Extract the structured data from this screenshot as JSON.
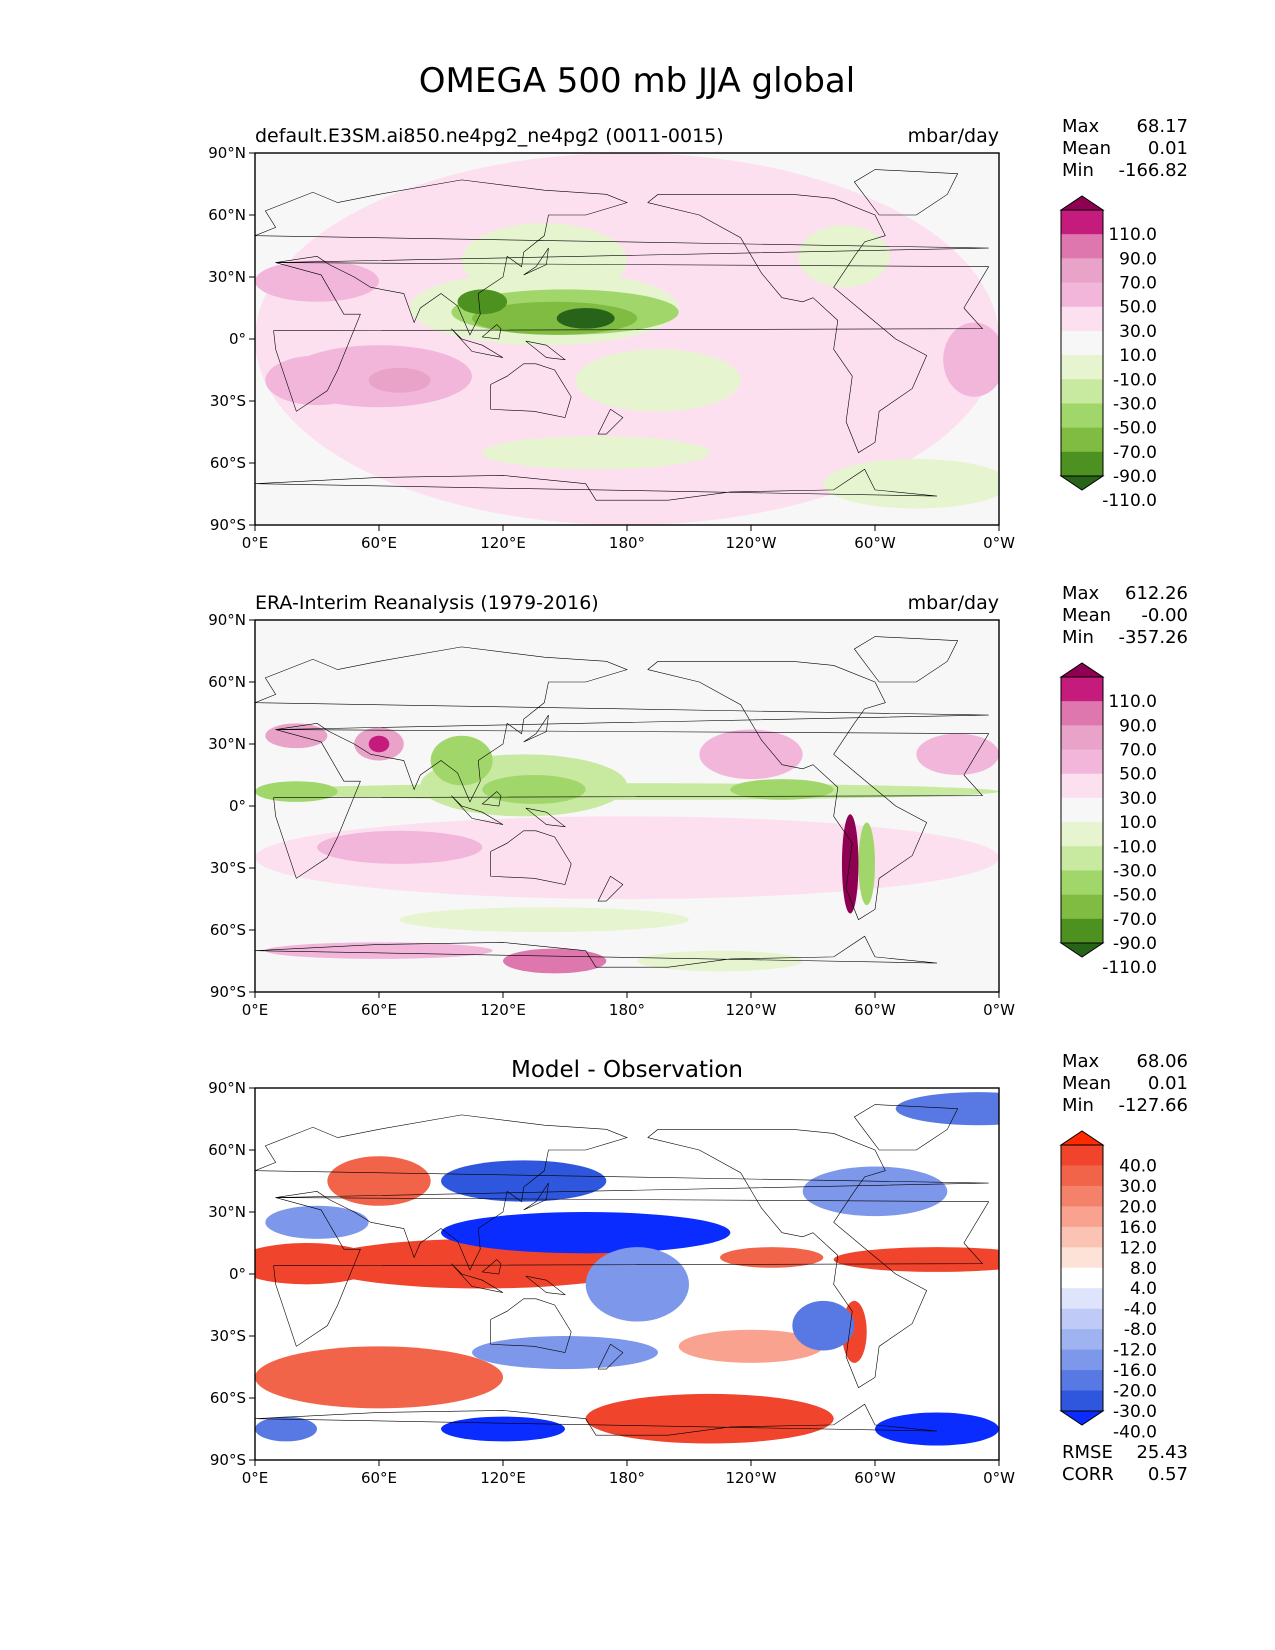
{
  "suptitle": "OMEGA 500 mb JJA global",
  "chart_data": [
    {
      "type": "heatmap",
      "title_left": "default.E3SM.ai850.ne4pg2_ne4pg2 (0011-0015)",
      "title_right": "mbar/day",
      "title_center": "",
      "xlim": [
        0,
        360
      ],
      "ylim": [
        -90,
        90
      ],
      "xticklabels": [
        "0°E",
        "60°E",
        "120°E",
        "180°",
        "120°W",
        "60°W",
        "0°W"
      ],
      "yticklabels": [
        "90°N",
        "60°N",
        "30°N",
        "0°",
        "30°S",
        "60°S",
        "90°S"
      ],
      "stats": [
        {
          "label": "Max",
          "value": "68.17"
        },
        {
          "label": "Mean",
          "value": "0.01"
        },
        {
          "label": "Min",
          "value": "-166.82"
        }
      ],
      "colorbar": {
        "labels": [
          "110.0",
          "90.0",
          "70.0",
          "50.0",
          "30.0",
          "10.0",
          "-10.0",
          "-30.0",
          "-50.0",
          "-70.0",
          "-90.0",
          "-110.0"
        ],
        "colors": [
          "#8e0152",
          "#c51b7d",
          "#de77ae",
          "#e9a3c9",
          "#f1b6da",
          "#fde0ef",
          "#f7f7f7",
          "#e6f5d0",
          "#c7e9a0",
          "#a1d76a",
          "#7fbc41",
          "#4d9221",
          "#276419"
        ]
      },
      "regions": [
        {
          "lon": 180,
          "lat": 0,
          "rlon": 180,
          "rlat": 90,
          "value": 12
        },
        {
          "lon": 180,
          "lat": -5,
          "rlon": 180,
          "rlat": 22,
          "value": 22
        },
        {
          "lon": 30,
          "lat": -20,
          "rlon": 25,
          "rlat": 12,
          "value": 30
        },
        {
          "lon": 60,
          "lat": -18,
          "rlon": 45,
          "rlat": 15,
          "value": 36
        },
        {
          "lon": 70,
          "lat": -20,
          "rlon": 15,
          "rlat": 6,
          "value": 52
        },
        {
          "lon": 30,
          "lat": 28,
          "rlon": 30,
          "rlat": 10,
          "value": 30
        },
        {
          "lon": 215,
          "lat": 25,
          "rlon": 40,
          "rlat": 18,
          "value": 28
        },
        {
          "lon": 348,
          "lat": -10,
          "rlon": 15,
          "rlat": 18,
          "value": 40
        },
        {
          "lon": 130,
          "lat": -12,
          "rlon": 20,
          "rlat": 10,
          "value": 20
        },
        {
          "lon": 220,
          "lat": -70,
          "rlon": 55,
          "rlat": 14,
          "value": 18
        },
        {
          "lon": 140,
          "lat": 38,
          "rlon": 40,
          "rlat": 18,
          "value": -20
        },
        {
          "lon": 140,
          "lat": 15,
          "rlon": 65,
          "rlat": 18,
          "value": -30
        },
        {
          "lon": 150,
          "lat": 13,
          "rlon": 55,
          "rlat": 11,
          "value": -60
        },
        {
          "lon": 145,
          "lat": 10,
          "rlon": 40,
          "rlat": 8,
          "value": -90
        },
        {
          "lon": 160,
          "lat": 10,
          "rlon": 14,
          "rlat": 5,
          "value": -112
        },
        {
          "lon": 110,
          "lat": 18,
          "rlon": 12,
          "rlat": 6,
          "value": -100
        },
        {
          "lon": 195,
          "lat": -20,
          "rlon": 40,
          "rlat": 15,
          "value": -18
        },
        {
          "lon": 165,
          "lat": -55,
          "rlon": 55,
          "rlat": 8,
          "value": -20
        },
        {
          "lon": 285,
          "lat": 40,
          "rlon": 22,
          "rlat": 15,
          "value": -15
        },
        {
          "lon": 320,
          "lat": -70,
          "rlon": 45,
          "rlat": 12,
          "value": -15
        }
      ],
      "zoom": "1.00"
    },
    {
      "type": "heatmap",
      "title_left": "ERA-Interim Reanalysis (1979-2016)",
      "title_right": "mbar/day",
      "title_center": "",
      "xlim": [
        0,
        360
      ],
      "ylim": [
        -90,
        90
      ],
      "xticklabels": [
        "0°E",
        "60°E",
        "120°E",
        "180°",
        "120°W",
        "60°W",
        "0°W"
      ],
      "yticklabels": [
        "90°N",
        "60°N",
        "30°N",
        "0°",
        "30°S",
        "60°S",
        "90°S"
      ],
      "stats": [
        {
          "label": "Max",
          "value": "612.26"
        },
        {
          "label": "Mean",
          "value": "-0.00"
        },
        {
          "label": "Min",
          "value": "-357.26"
        }
      ],
      "colorbar": {
        "labels": [
          "110.0",
          "90.0",
          "70.0",
          "50.0",
          "30.0",
          "10.0",
          "-10.0",
          "-30.0",
          "-50.0",
          "-70.0",
          "-90.0",
          "-110.0"
        ],
        "colors": [
          "#8e0152",
          "#c51b7d",
          "#de77ae",
          "#e9a3c9",
          "#f1b6da",
          "#fde0ef",
          "#f7f7f7",
          "#e6f5d0",
          "#c7e9a0",
          "#a1d76a",
          "#7fbc41",
          "#4d9221",
          "#276419"
        ]
      },
      "regions": [
        {
          "lon": 180,
          "lat": -25,
          "rlon": 180,
          "rlat": 20,
          "value": 18
        },
        {
          "lon": 70,
          "lat": -20,
          "rlon": 40,
          "rlat": 8,
          "value": 32
        },
        {
          "lon": 20,
          "lat": 34,
          "rlon": 15,
          "rlat": 6,
          "value": 60
        },
        {
          "lon": 60,
          "lat": 30,
          "rlon": 12,
          "rlat": 8,
          "value": 55
        },
        {
          "lon": 60,
          "lat": 30,
          "rlon": 5,
          "rlat": 4,
          "value": 95
        },
        {
          "lon": 240,
          "lat": 25,
          "rlon": 25,
          "rlat": 12,
          "value": 30
        },
        {
          "lon": 340,
          "lat": 25,
          "rlon": 20,
          "rlat": 10,
          "value": 30
        },
        {
          "lon": 180,
          "lat": 7,
          "rlon": 180,
          "rlat": 4,
          "value": -35
        },
        {
          "lon": 130,
          "lat": 10,
          "rlon": 50,
          "rlat": 15,
          "value": -45
        },
        {
          "lon": 135,
          "lat": 8,
          "rlon": 25,
          "rlat": 7,
          "value": -70
        },
        {
          "lon": 100,
          "lat": 22,
          "rlon": 15,
          "rlat": 12,
          "value": -60
        },
        {
          "lon": 20,
          "lat": 7,
          "rlon": 20,
          "rlat": 5,
          "value": -60
        },
        {
          "lon": 255,
          "lat": 8,
          "rlon": 25,
          "rlat": 5,
          "value": -60
        },
        {
          "lon": 288,
          "lat": -28,
          "rlon": 4,
          "rlat": 24,
          "value": 112
        },
        {
          "lon": 296,
          "lat": -28,
          "rlon": 4,
          "rlat": 20,
          "value": -60
        },
        {
          "lon": 145,
          "lat": -75,
          "rlon": 25,
          "rlat": 6,
          "value": 70
        },
        {
          "lon": 60,
          "lat": -70,
          "rlon": 55,
          "rlat": 4,
          "value": 40
        },
        {
          "lon": 140,
          "lat": -55,
          "rlon": 70,
          "rlat": 6,
          "value": -15
        },
        {
          "lon": 225,
          "lat": -75,
          "rlon": 40,
          "rlat": 5,
          "value": -20
        }
      ],
      "zoom": "1.00"
    },
    {
      "type": "heatmap",
      "title_left": "",
      "title_right": "",
      "title_center": "Model - Observation",
      "xlim": [
        0,
        360
      ],
      "ylim": [
        -90,
        90
      ],
      "xticklabels": [
        "0°E",
        "60°E",
        "120°E",
        "180°",
        "120°W",
        "60°W",
        "0°W"
      ],
      "yticklabels": [
        "90°N",
        "60°N",
        "30°N",
        "0°",
        "30°S",
        "60°S",
        "90°S"
      ],
      "stats": [
        {
          "label": "Max",
          "value": "68.06"
        },
        {
          "label": "Mean",
          "value": "0.01"
        },
        {
          "label": "Min",
          "value": "-127.66"
        }
      ],
      "footer_stats": [
        {
          "label": "RMSE",
          "value": "25.43"
        },
        {
          "label": "CORR",
          "value": "0.57"
        }
      ],
      "colorbar": {
        "labels": [
          "40.0",
          "30.0",
          "20.0",
          "16.0",
          "12.0",
          "8.0",
          "4.0",
          "-4.0",
          "-8.0",
          "-12.0",
          "-16.0",
          "-20.0",
          "-30.0",
          "-40.0"
        ],
        "colors": [
          "#ff2a00",
          "#f0442c",
          "#f26449",
          "#f4826b",
          "#f8a28f",
          "#fbc3b3",
          "#fde2d8",
          "#ffffff",
          "#dde4fb",
          "#bfcbf6",
          "#a0b3f1",
          "#7d97ea",
          "#5879e3",
          "#2f57dd",
          "#0a2cff"
        ]
      },
      "regions": [
        {
          "lon": 110,
          "lat": 5,
          "rlon": 80,
          "rlat": 12,
          "value": 32
        },
        {
          "lon": 25,
          "lat": 5,
          "rlon": 35,
          "rlat": 10,
          "value": 32
        },
        {
          "lon": 330,
          "lat": 7,
          "rlon": 50,
          "rlat": 6,
          "value": 35
        },
        {
          "lon": 250,
          "lat": 8,
          "rlon": 25,
          "rlat": 5,
          "value": 22
        },
        {
          "lon": 60,
          "lat": -50,
          "rlon": 60,
          "rlat": 15,
          "value": 28
        },
        {
          "lon": 220,
          "lat": -70,
          "rlon": 60,
          "rlat": 12,
          "value": 32
        },
        {
          "lon": 60,
          "lat": 45,
          "rlon": 25,
          "rlat": 12,
          "value": 25
        },
        {
          "lon": 290,
          "lat": -28,
          "rlon": 6,
          "rlat": 15,
          "value": 30
        },
        {
          "lon": 240,
          "lat": -35,
          "rlon": 35,
          "rlat": 8,
          "value": 14
        },
        {
          "lon": 160,
          "lat": 20,
          "rlon": 70,
          "rlat": 10,
          "value": -42
        },
        {
          "lon": 130,
          "lat": 45,
          "rlon": 40,
          "rlat": 10,
          "value": -35
        },
        {
          "lon": 120,
          "lat": -75,
          "rlon": 30,
          "rlat": 6,
          "value": -42
        },
        {
          "lon": 330,
          "lat": -75,
          "rlon": 30,
          "rlat": 8,
          "value": -42
        },
        {
          "lon": 15,
          "lat": -75,
          "rlon": 15,
          "rlat": 6,
          "value": -30
        },
        {
          "lon": 185,
          "lat": -5,
          "rlon": 25,
          "rlat": 18,
          "value": -18
        },
        {
          "lon": 150,
          "lat": -38,
          "rlon": 45,
          "rlat": 8,
          "value": -20
        },
        {
          "lon": 275,
          "lat": -25,
          "rlon": 15,
          "rlat": 12,
          "value": -30
        },
        {
          "lon": 300,
          "lat": 40,
          "rlon": 35,
          "rlat": 12,
          "value": -18
        },
        {
          "lon": 30,
          "lat": 25,
          "rlon": 25,
          "rlat": 8,
          "value": -20
        },
        {
          "lon": 350,
          "lat": 80,
          "rlon": 40,
          "rlat": 8,
          "value": -30
        }
      ],
      "zoom": "1.00"
    }
  ]
}
